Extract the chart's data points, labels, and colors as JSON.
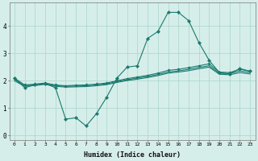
{
  "xlabel": "Humidex (Indice chaleur)",
  "background_color": "#d6eeea",
  "grid_color": "#b0d8d0",
  "line_color": "#1a7a6e",
  "x_ticks": [
    0,
    1,
    2,
    3,
    4,
    5,
    6,
    7,
    8,
    9,
    10,
    11,
    12,
    13,
    14,
    15,
    16,
    17,
    18,
    19,
    20,
    21,
    22,
    23
  ],
  "y_ticks": [
    0,
    1,
    2,
    3,
    4
  ],
  "ylim": [
    -0.15,
    4.85
  ],
  "xlim": [
    -0.5,
    23.5
  ],
  "line1_x": [
    0,
    1,
    2,
    3,
    4,
    5,
    6,
    7,
    8,
    9,
    10,
    11,
    12,
    13,
    14,
    15,
    16,
    17,
    18,
    19,
    20,
    21,
    22,
    23
  ],
  "line1_y": [
    2.1,
    1.75,
    1.85,
    1.9,
    1.75,
    0.6,
    0.65,
    0.35,
    0.8,
    1.4,
    2.1,
    2.5,
    2.55,
    3.55,
    3.8,
    4.5,
    4.5,
    4.2,
    3.4,
    2.75,
    2.3,
    2.25,
    2.45,
    2.35
  ],
  "line2_x": [
    0,
    1,
    2,
    3,
    4,
    5,
    6,
    7,
    8,
    9,
    10,
    11,
    12,
    13,
    14,
    15,
    16,
    17,
    18,
    19,
    20,
    21,
    22,
    23
  ],
  "line2_y": [
    2.1,
    1.85,
    1.88,
    1.92,
    1.85,
    1.82,
    1.84,
    1.85,
    1.88,
    1.92,
    2.0,
    2.08,
    2.14,
    2.2,
    2.28,
    2.38,
    2.42,
    2.48,
    2.55,
    2.62,
    2.32,
    2.3,
    2.42,
    2.35
  ],
  "line3_x": [
    0,
    1,
    2,
    3,
    4,
    5,
    6,
    7,
    8,
    9,
    10,
    11,
    12,
    13,
    14,
    15,
    16,
    17,
    18,
    19,
    20,
    21,
    22,
    23
  ],
  "line3_y": [
    2.05,
    1.82,
    1.85,
    1.9,
    1.82,
    1.8,
    1.81,
    1.82,
    1.85,
    1.89,
    1.97,
    2.04,
    2.1,
    2.16,
    2.23,
    2.32,
    2.36,
    2.42,
    2.49,
    2.55,
    2.28,
    2.26,
    2.36,
    2.3
  ],
  "line4_x": [
    0,
    1,
    2,
    3,
    4,
    5,
    6,
    7,
    8,
    9,
    10,
    11,
    12,
    13,
    14,
    15,
    16,
    17,
    18,
    19,
    20,
    21,
    22,
    23
  ],
  "line4_y": [
    2.0,
    1.8,
    1.83,
    1.87,
    1.8,
    1.77,
    1.78,
    1.79,
    1.82,
    1.86,
    1.94,
    2.01,
    2.06,
    2.12,
    2.19,
    2.28,
    2.32,
    2.37,
    2.44,
    2.5,
    2.24,
    2.22,
    2.3,
    2.25
  ]
}
